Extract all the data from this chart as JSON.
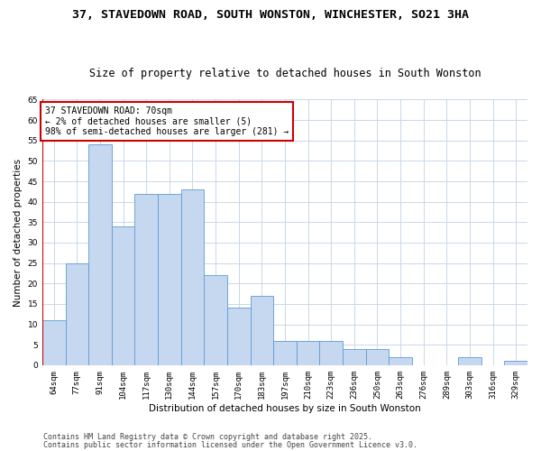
{
  "title1": "37, STAVEDOWN ROAD, SOUTH WONSTON, WINCHESTER, SO21 3HA",
  "title2": "Size of property relative to detached houses in South Wonston",
  "xlabel": "Distribution of detached houses by size in South Wonston",
  "ylabel": "Number of detached properties",
  "categories": [
    "64sqm",
    "77sqm",
    "91sqm",
    "104sqm",
    "117sqm",
    "130sqm",
    "144sqm",
    "157sqm",
    "170sqm",
    "183sqm",
    "197sqm",
    "210sqm",
    "223sqm",
    "236sqm",
    "250sqm",
    "263sqm",
    "276sqm",
    "289sqm",
    "303sqm",
    "316sqm",
    "329sqm"
  ],
  "values": [
    11,
    25,
    54,
    34,
    42,
    42,
    43,
    22,
    14,
    17,
    6,
    6,
    6,
    4,
    4,
    2,
    0,
    0,
    2,
    0,
    1
  ],
  "bar_color": "#c5d8f0",
  "bar_edge_color": "#5b9bd5",
  "highlight_line_color": "#cc0000",
  "ylim": [
    0,
    65
  ],
  "yticks": [
    0,
    5,
    10,
    15,
    20,
    25,
    30,
    35,
    40,
    45,
    50,
    55,
    60,
    65
  ],
  "annotation_title": "37 STAVEDOWN ROAD: 70sqm",
  "annotation_line1": "← 2% of detached houses are smaller (5)",
  "annotation_line2": "98% of semi-detached houses are larger (281) →",
  "annotation_box_color": "#ffffff",
  "annotation_box_edge": "#cc0000",
  "footer1": "Contains HM Land Registry data © Crown copyright and database right 2025.",
  "footer2": "Contains public sector information licensed under the Open Government Licence v3.0.",
  "bg_color": "#ffffff",
  "grid_color": "#c8d8e8",
  "title1_fontsize": 9.5,
  "title2_fontsize": 8.5,
  "ylabel_fontsize": 7.5,
  "xlabel_fontsize": 7.5,
  "tick_fontsize": 6.5,
  "annotation_fontsize": 7,
  "footer_fontsize": 6
}
